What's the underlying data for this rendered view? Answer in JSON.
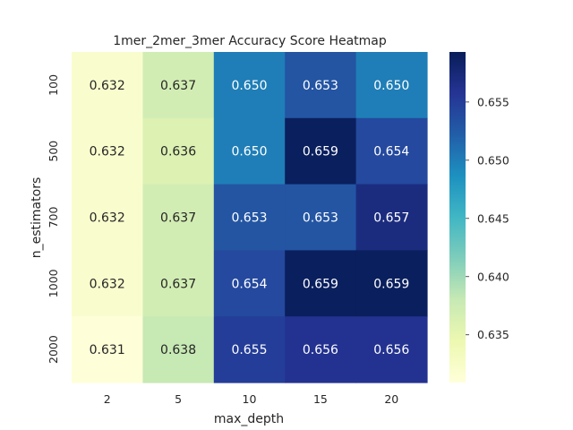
{
  "chart_data": {
    "type": "heatmap",
    "title": "1mer_2mer_3mer Accuracy Score Heatmap",
    "xlabel": "max_depth",
    "ylabel": "n_estimators",
    "x_categories": [
      "2",
      "5",
      "10",
      "15",
      "20"
    ],
    "y_categories": [
      "100",
      "500",
      "700",
      "1000",
      "2000"
    ],
    "values": [
      [
        0.632,
        0.637,
        0.65,
        0.653,
        0.65
      ],
      [
        0.632,
        0.636,
        0.65,
        0.659,
        0.654
      ],
      [
        0.632,
        0.637,
        0.653,
        0.653,
        0.657
      ],
      [
        0.632,
        0.637,
        0.654,
        0.659,
        0.659
      ],
      [
        0.631,
        0.638,
        0.655,
        0.656,
        0.656
      ]
    ],
    "value_labels": [
      [
        "0.632",
        "0.637",
        "0.650",
        "0.653",
        "0.650"
      ],
      [
        "0.632",
        "0.636",
        "0.650",
        "0.659",
        "0.654"
      ],
      [
        "0.632",
        "0.637",
        "0.653",
        "0.653",
        "0.657"
      ],
      [
        "0.632",
        "0.637",
        "0.654",
        "0.659",
        "0.659"
      ],
      [
        "0.631",
        "0.638",
        "0.655",
        "0.656",
        "0.656"
      ]
    ],
    "colorbar": {
      "range": [
        0.6309,
        0.6593
      ],
      "ticks": [
        0.635,
        0.64,
        0.645,
        0.65,
        0.655
      ],
      "tick_labels": [
        "0.635",
        "0.640",
        "0.645",
        "0.650",
        "0.655"
      ],
      "colormap": "YlGnBu",
      "colormap_stops": [
        "#ffffd9",
        "#edf8b1",
        "#c7e9b4",
        "#7fcdbb",
        "#41b6c4",
        "#1d91c0",
        "#225ea8",
        "#253494",
        "#081d58"
      ]
    },
    "grid": false
  }
}
